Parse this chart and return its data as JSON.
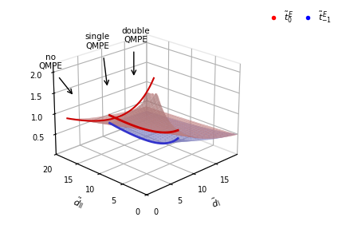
{
  "d1_min": 0.1,
  "d1_max": 20.0,
  "d2_min": 0.1,
  "d2_max": 20.0,
  "t_max": 2.2,
  "red_surface_color": "#FFB0B0",
  "blue_surface_color": "#AAAAFF",
  "red_line_color": "#CC0000",
  "blue_line_color": "#3333CC",
  "legend_red_color": "#FF0000",
  "legend_blue_color": "#0000FF",
  "xlabel": "$\\tilde{d}_{\\rm I}$",
  "ylabel": "$\\tilde{d}_{\\rm II}$",
  "zticks": [
    0.5,
    1.0,
    1.5,
    2.0
  ],
  "xticks": [
    0,
    5,
    10,
    15
  ],
  "yticks": [
    0,
    5,
    10,
    15,
    20
  ],
  "elev": 22,
  "azim": 225,
  "figsize": [
    4.35,
    2.82
  ],
  "dpi": 100
}
